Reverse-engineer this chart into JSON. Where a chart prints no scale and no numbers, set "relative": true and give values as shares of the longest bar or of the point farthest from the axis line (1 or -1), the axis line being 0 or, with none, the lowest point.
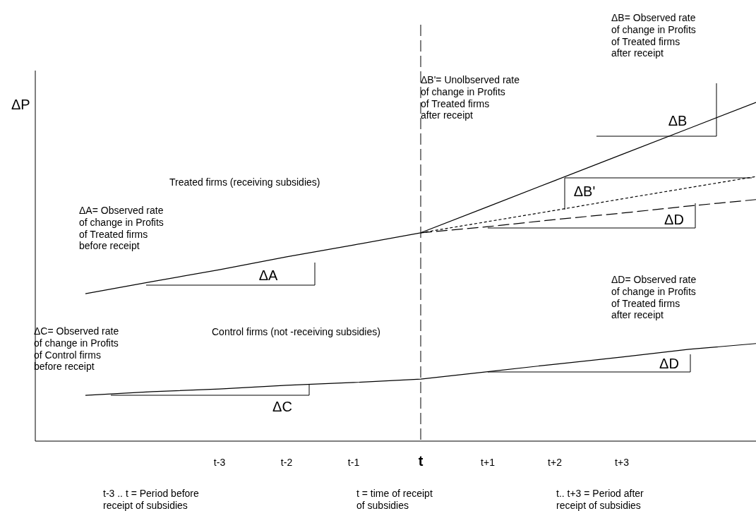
{
  "chart_data": {
    "type": "line",
    "relative": true,
    "ylabel": "ΔP",
    "categories": [
      null,
      null,
      "t-3",
      "t-2",
      "t-1",
      "t",
      "t+1",
      "t+2",
      "t+3",
      null,
      null
    ],
    "series": [
      {
        "color": "#000000",
        "line_style": "solid",
        "values": [
          0.435,
          0.471,
          0.506,
          0.544,
          0.579,
          0.615,
          0.692,
          0.769,
          0.846,
          0.923,
          1.0
        ]
      },
      {
        "color": "#000000",
        "line_style": "dotted",
        "values": [
          null,
          null,
          null,
          null,
          null,
          0.615,
          0.648,
          0.681,
          0.715,
          0.748,
          0.781
        ]
      },
      {
        "color": "#000000",
        "line_style": "dashed",
        "values": [
          null,
          null,
          null,
          null,
          null,
          0.615,
          0.633,
          0.654,
          0.673,
          0.694,
          0.713
        ]
      },
      {
        "color": "#000000",
        "line_style": "solid",
        "values": [
          0.135,
          0.146,
          0.154,
          0.165,
          0.173,
          0.183,
          0.205,
          0.227,
          0.248,
          0.271,
          0.288
        ]
      }
    ],
    "ref_lines": [
      {
        "axis": "x",
        "value": "t",
        "line_style": "dashed"
      }
    ],
    "annotations": [
      "ΔB= Observed rate\nof change in Profits\nof Treated firms\nafter receipt",
      "ΔB'= Unolbserved rate\nof change in Profits\nof Treated firms\nafter receipt",
      "ΔA= Observed rate\nof change in Profits\nof Treated firms\nbefore receipt",
      "ΔD= Observed rate\nof change in Profits\nof Treated firms\nafter receipt",
      "ΔC= Observed rate\nof change in Profits\nof Control firms\nbefore receipt",
      "ΔA",
      "ΔB",
      "ΔB'",
      "ΔD",
      "ΔD",
      "ΔC",
      "t-3 .. t = Period before\nreceipt of subsidies",
      "t = time of receipt\nof subsidies",
      "t.. t+3 = Period after\nreceipt of subsidies",
      "Treated firms (receiving subsidies)",
      "Control firms (not -receiving subsidies)"
    ]
  }
}
